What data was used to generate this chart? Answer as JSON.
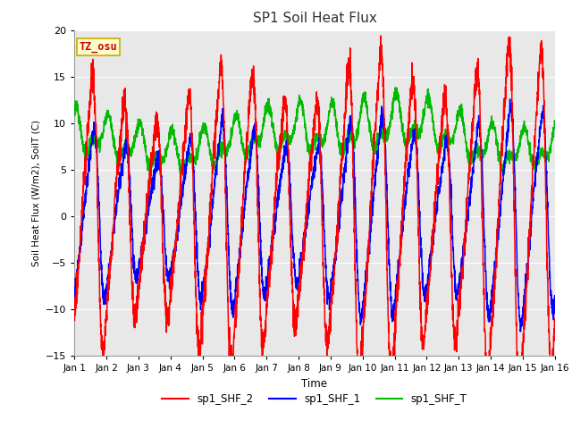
{
  "title": "SP1 Soil Heat Flux",
  "xlabel": "Time",
  "ylabel": "Soil Heat Flux (W/m2), SoilT (C)",
  "xlim": [
    0,
    15
  ],
  "ylim": [
    -15,
    20
  ],
  "yticks": [
    -15,
    -10,
    -5,
    0,
    5,
    10,
    15,
    20
  ],
  "xtick_labels": [
    "Jan 1",
    "Jan 2",
    "Jan 3",
    "Jan 4",
    "Jan 5",
    "Jan 6",
    "Jan 7",
    "Jan 8",
    "Jan 9",
    "Jan 10",
    "Jan 11",
    "Jan 12",
    "Jan 13",
    "Jan 14",
    "Jan 15",
    "Jan 16"
  ],
  "xtick_positions": [
    0,
    1,
    2,
    3,
    4,
    5,
    6,
    7,
    8,
    9,
    10,
    11,
    12,
    13,
    14,
    15
  ],
  "color_shf2": "#ff0000",
  "color_shf1": "#0000ff",
  "color_shfT": "#00bb00",
  "label_shf2": "sp1_SHF_2",
  "label_shf1": "sp1_SHF_1",
  "label_shfT": "sp1_SHF_T",
  "plot_bg_color": "#e8e8e8",
  "fig_bg_color": "#ffffff",
  "annotation_text": "TZ_osu",
  "annotation_bg": "#ffffcc",
  "annotation_border": "#ccaa00",
  "annotation_text_color": "#cc0000",
  "grid_color": "#ffffff",
  "title_fontsize": 11,
  "n_points": 3000
}
